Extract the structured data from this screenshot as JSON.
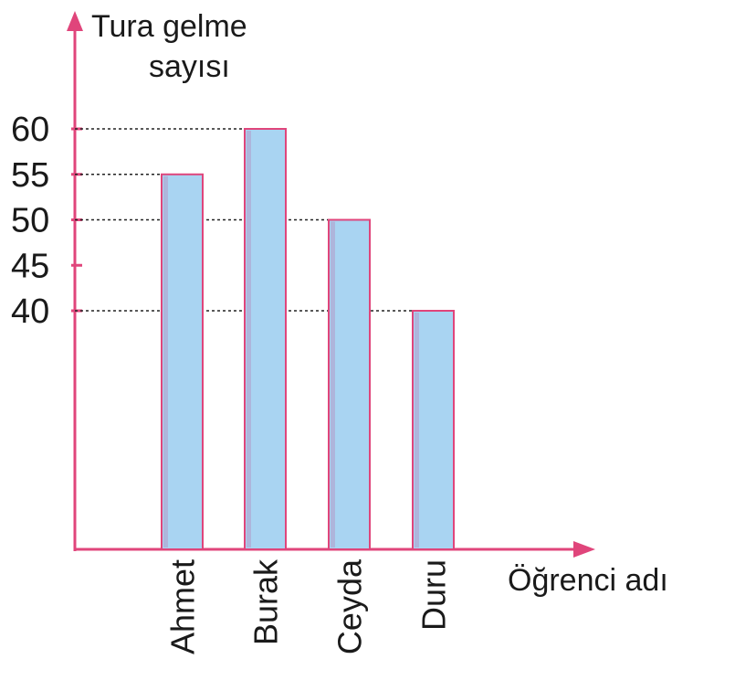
{
  "chart_data": {
    "type": "bar",
    "title": "",
    "ylabel_line1": "Tura gelme",
    "ylabel_line2": "sayısı",
    "xlabel": "Öğrenci adı",
    "categories": [
      "Ahmet",
      "Burak",
      "Ceyda",
      "Duru"
    ],
    "values": [
      55,
      60,
      50,
      40
    ],
    "yticks": [
      40,
      45,
      50,
      55,
      60
    ],
    "ytick_labels": [
      "40",
      "45",
      "50",
      "55",
      "60"
    ],
    "guide_lines": "dotted lines from each bar top to the y-axis",
    "grid": false,
    "legend": "none",
    "colors": {
      "axis": "#e0457b",
      "bar_fill": "#a9d4f2",
      "bar_stroke": "#e0457b",
      "bar_shadow": "#b39ac8",
      "guide": "#222222"
    }
  }
}
